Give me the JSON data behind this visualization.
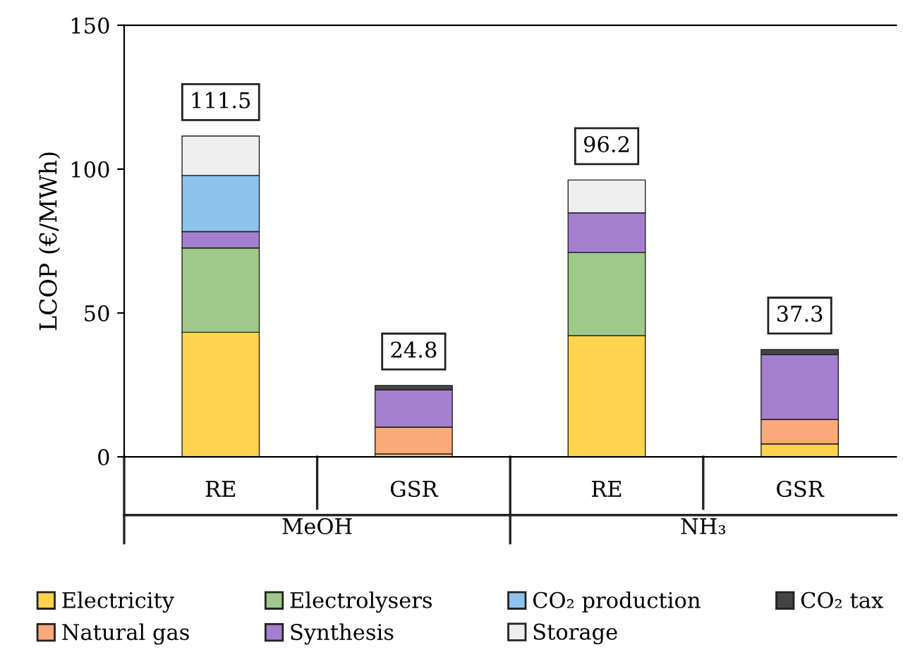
{
  "chart_data": {
    "type": "bar",
    "stacked": true,
    "ylabel": "LCOP (€/MWh)",
    "categories": [
      "RE",
      "GSR",
      "RE",
      "GSR"
    ],
    "series": [
      {
        "name": "Electricity",
        "color": "#ffd34d",
        "values": [
          43.3,
          1.0,
          42.1,
          4.5
        ]
      },
      {
        "name": "Natural gas",
        "color": "#f9a97a",
        "values": [
          null,
          9.3,
          null,
          8.5
        ]
      },
      {
        "name": "Electrolysers",
        "color": "#9fc98a",
        "values": [
          29.3,
          null,
          28.9,
          null
        ]
      },
      {
        "name": "Synthesis",
        "color": "#a47fcf",
        "values": [
          5.7,
          13.0,
          13.8,
          22.5
        ]
      },
      {
        "name": "CO₂ production",
        "color": "#8fc3ee",
        "values": [
          19.5,
          null,
          null,
          null
        ]
      },
      {
        "name": "Storage",
        "color": "#eeeeee",
        "values": [
          13.7,
          null,
          11.4,
          null
        ]
      },
      {
        "name": "CO₂ tax",
        "color": "#444444",
        "values": [
          null,
          1.5,
          null,
          1.8
        ]
      }
    ],
    "totals": [
      "111.5",
      "24.8",
      "96.2",
      "37.3"
    ],
    "annotations": [
      "MeOH",
      "NH₃"
    ],
    "ylim": [
      0,
      150
    ],
    "yticks": [
      0,
      50,
      100,
      150
    ],
    "grid": false,
    "legend": "bottom"
  }
}
